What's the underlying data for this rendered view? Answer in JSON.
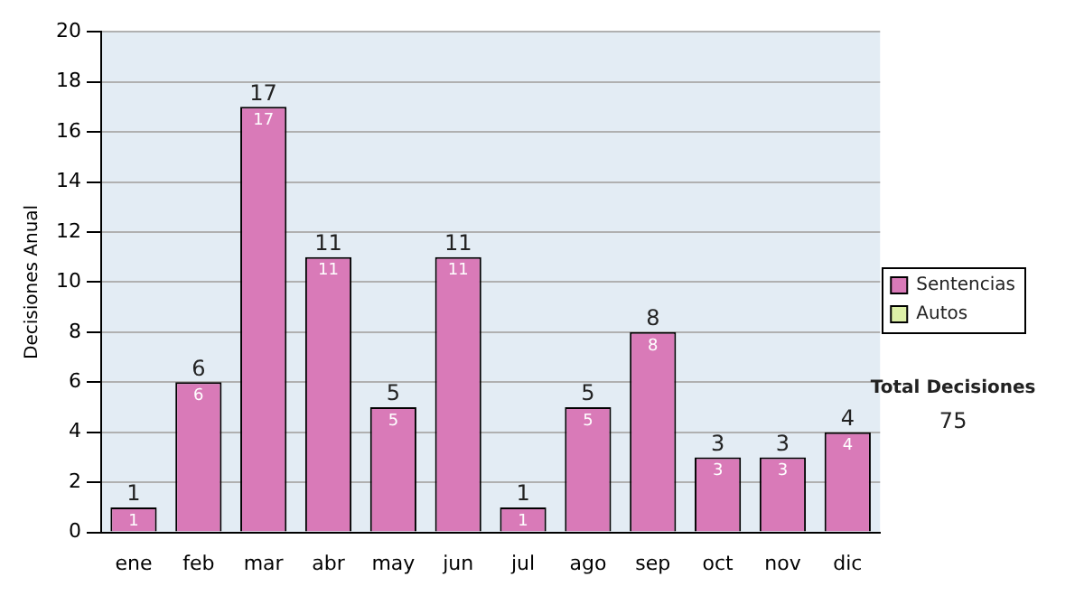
{
  "chart_data": {
    "type": "bar",
    "stacked": true,
    "categories": [
      "ene",
      "feb",
      "mar",
      "abr",
      "may",
      "jun",
      "jul",
      "ago",
      "sep",
      "oct",
      "nov",
      "dic"
    ],
    "series": [
      {
        "name": "Sentencias",
        "color": "#d97ab8",
        "values": [
          1,
          6,
          17,
          11,
          5,
          11,
          1,
          5,
          8,
          3,
          3,
          4
        ]
      },
      {
        "name": "Autos",
        "color": "#ddf0a8",
        "values": [
          null,
          null,
          null,
          null,
          null,
          null,
          null,
          null,
          null,
          null,
          null,
          null
        ]
      }
    ],
    "totals": [
      "1",
      "6",
      "17",
      "11",
      "5",
      "11",
      "1",
      "5",
      "8",
      "3",
      "3",
      "4"
    ],
    "data_labels": true,
    "ylabel": "Decisiones Anual",
    "ylim": [
      0,
      20
    ],
    "yticks": [
      0,
      2,
      4,
      6,
      8,
      10,
      12,
      14,
      16,
      18,
      20
    ],
    "grid": "y",
    "legend": "right",
    "annotations": [
      "Total Decisiones",
      "75"
    ]
  }
}
